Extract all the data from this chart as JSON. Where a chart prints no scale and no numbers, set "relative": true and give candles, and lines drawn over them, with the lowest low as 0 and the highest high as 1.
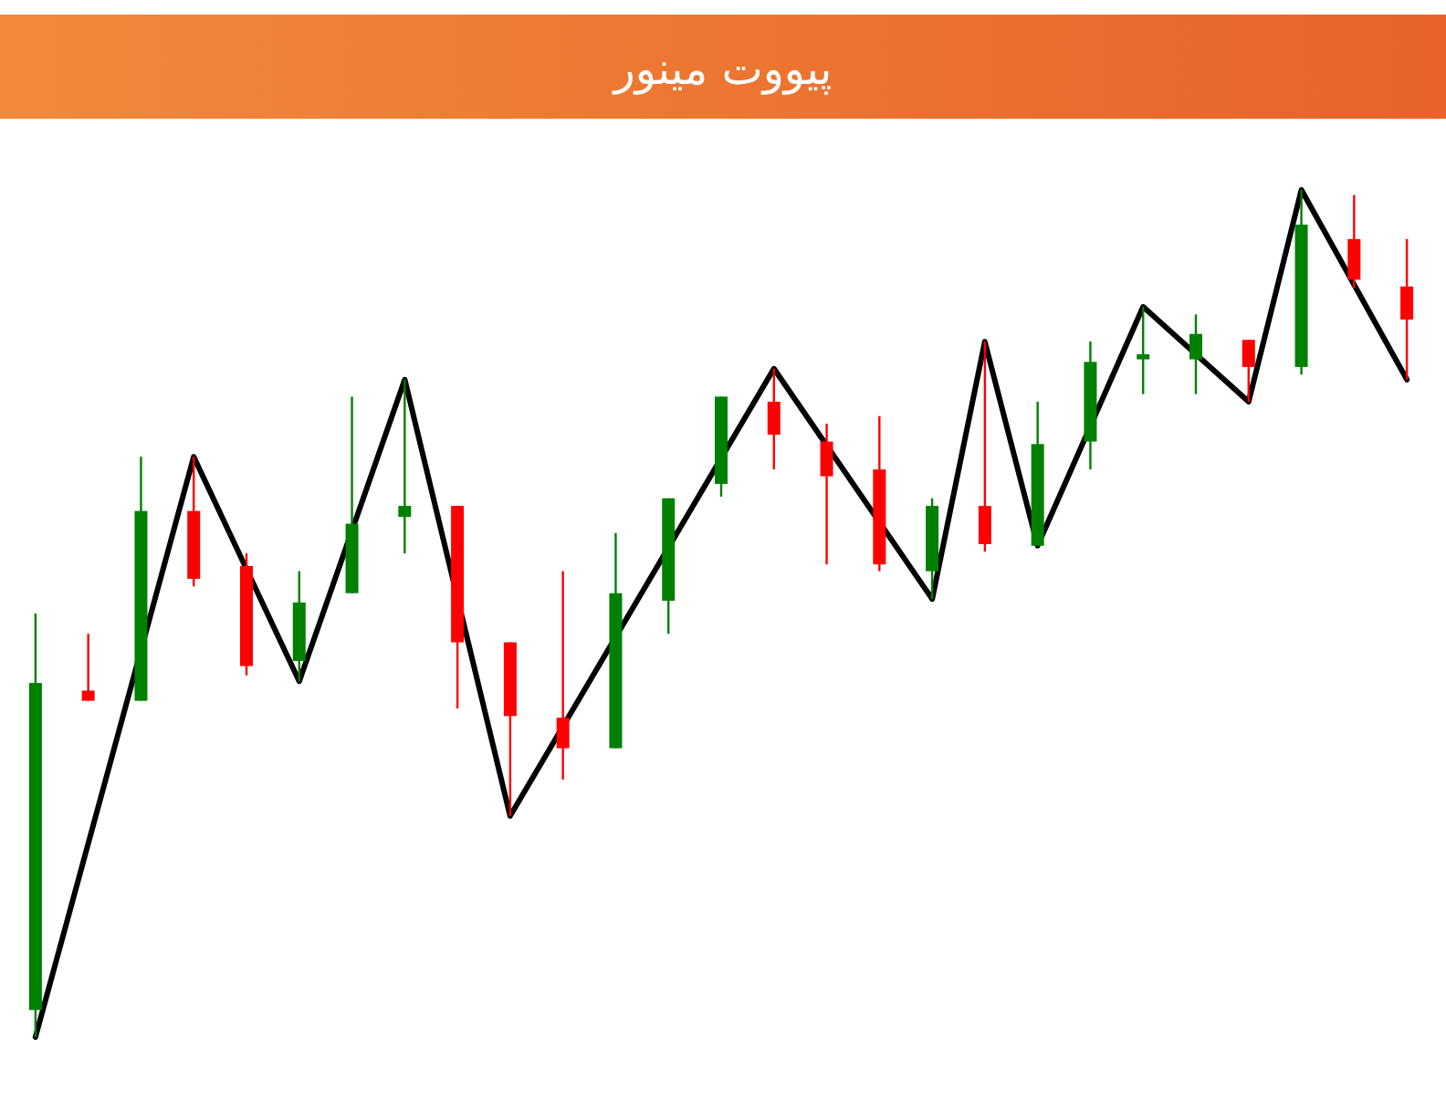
{
  "chart_data": {
    "type": "candlestick",
    "title": "پیووت مینور",
    "relative": true,
    "categories": [
      null,
      null,
      null,
      null,
      null,
      null,
      null,
      null,
      null,
      null,
      null,
      null,
      null,
      null,
      null,
      null,
      null,
      null,
      null,
      null,
      null,
      null,
      null,
      null,
      null,
      null,
      null
    ],
    "series": [
      {
        "ohlc": [
          [
            0.032,
            0.5,
            0,
            0.418
          ],
          [
            0.409,
            0.476,
            0.397,
            0.397
          ],
          [
            0.397,
            0.685,
            0.397,
            0.621
          ],
          [
            0.621,
            0.685,
            0.532,
            0.541
          ],
          [
            0.556,
            0.571,
            0.427,
            0.438
          ],
          [
            0.444,
            0.55,
            0.42,
            0.513
          ],
          [
            0.524,
            0.756,
            0.524,
            0.606
          ],
          [
            0.614,
            0.776,
            0.571,
            0.627
          ],
          [
            0.627,
            0.627,
            0.388,
            0.466
          ],
          [
            0.466,
            0.466,
            0.261,
            0.379
          ],
          [
            0.377,
            0.55,
            0.304,
            0.341
          ],
          [
            0.341,
            0.595,
            0.341,
            0.524
          ],
          [
            0.515,
            0.636,
            0.476,
            0.636
          ],
          [
            0.653,
            0.756,
            0.638,
            0.756
          ],
          [
            0.75,
            0.789,
            0.67,
            0.711
          ],
          [
            0.703,
            0.724,
            0.558,
            0.662
          ],
          [
            0.67,
            0.733,
            0.55,
            0.558
          ],
          [
            0.55,
            0.636,
            0.517,
            0.627
          ],
          [
            0.627,
            0.821,
            0.573,
            0.582
          ],
          [
            0.58,
            0.75,
            0.58,
            0.7
          ],
          [
            0.703,
            0.821,
            0.67,
            0.797
          ],
          [
            0.8,
            0.862,
            0.759,
            0.806
          ],
          [
            0.8,
            0.853,
            0.759,
            0.83
          ],
          [
            0.823,
            0.823,
            0.75,
            0.791
          ],
          [
            0.791,
            1,
            0.782,
            0.959
          ],
          [
            0.942,
            0.994,
            0.884,
            0.894
          ],
          [
            0.886,
            0.942,
            0.776,
            0.847
          ]
        ],
        "colors": [
          "#008000",
          "#ff0000",
          "#008000",
          "#ff0000",
          "#ff0000",
          "#008000",
          "#008000",
          "#008000",
          "#ff0000",
          "#ff0000",
          "#ff0000",
          "#008000",
          "#008000",
          "#008000",
          "#ff0000",
          "#ff0000",
          "#ff0000",
          "#008000",
          "#ff0000",
          "#008000",
          "#008000",
          "#008000",
          "#008000",
          "#ff0000",
          "#008000",
          "#ff0000",
          "#ff0000"
        ]
      },
      {
        "type": "line",
        "color": "#000000",
        "line_style": "solid",
        "values": [
          0,
          null,
          null,
          0.685,
          null,
          0.42,
          null,
          0.776,
          null,
          0.261,
          null,
          null,
          null,
          null,
          0.789,
          null,
          null,
          0.517,
          0.821,
          0.58,
          null,
          0.862,
          null,
          0.75,
          1,
          null,
          0.776
        ]
      }
    ]
  }
}
